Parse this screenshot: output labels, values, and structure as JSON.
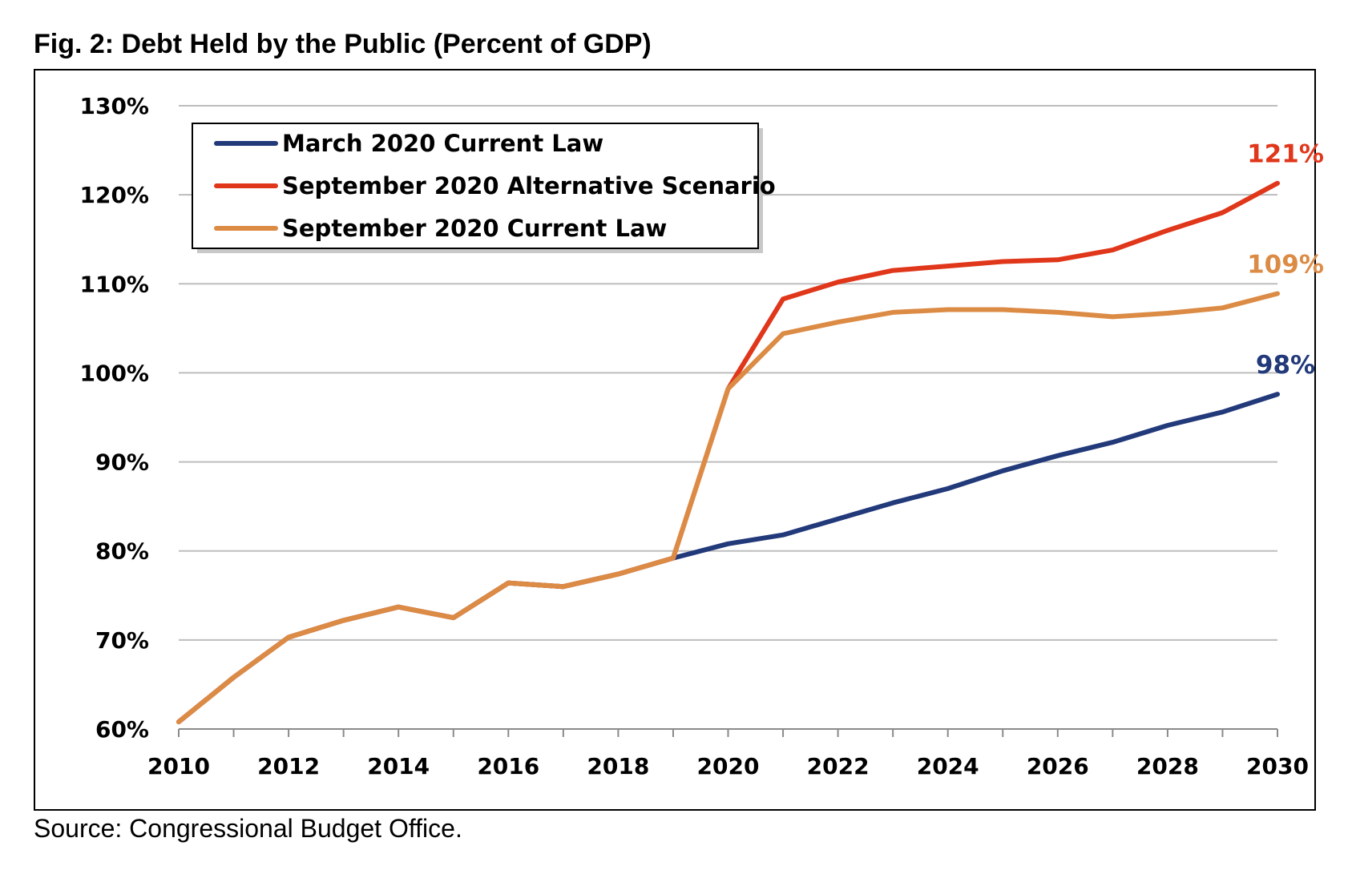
{
  "title": "Fig. 2: Debt Held by the Public (Percent of GDP)",
  "source": "Source: Congressional Budget Office.",
  "chart_data": {
    "type": "line",
    "title": "Fig. 2: Debt Held by the Public (Percent of GDP)",
    "xlabel": "",
    "ylabel": "",
    "x": [
      2010,
      2011,
      2012,
      2013,
      2014,
      2015,
      2016,
      2017,
      2018,
      2019,
      2020,
      2021,
      2022,
      2023,
      2024,
      2025,
      2026,
      2027,
      2028,
      2029,
      2030
    ],
    "xlim": [
      2010,
      2030
    ],
    "ylim": [
      60,
      130
    ],
    "x_tick_labels": [
      "2010",
      "2012",
      "2014",
      "2016",
      "2018",
      "2020",
      "2022",
      "2024",
      "2026",
      "2028",
      "2030"
    ],
    "y_tick_labels": [
      "60%",
      "70%",
      "80%",
      "90%",
      "100%",
      "110%",
      "120%",
      "130%"
    ],
    "grid": true,
    "legend_position": "top-left",
    "series": [
      {
        "name": "March 2020 Current Law",
        "color": "#22397a",
        "values": [
          60.8,
          65.8,
          70.3,
          72.2,
          73.7,
          72.5,
          76.4,
          76.0,
          77.4,
          79.2,
          80.8,
          81.8,
          83.6,
          85.4,
          87.0,
          89.0,
          90.7,
          92.2,
          94.1,
          95.6,
          97.6
        ],
        "end_label": "98%"
      },
      {
        "name": "September 2020 Alternative Scenario",
        "color": "#e0371b",
        "values": [
          60.8,
          65.8,
          70.3,
          72.2,
          73.7,
          72.5,
          76.4,
          76.0,
          77.4,
          79.2,
          98.2,
          108.3,
          110.2,
          111.5,
          112.0,
          112.5,
          112.7,
          113.8,
          116.0,
          118.0,
          121.3
        ],
        "end_label": "121%"
      },
      {
        "name": "September 2020 Current Law",
        "color": "#dc8b45",
        "values": [
          60.8,
          65.8,
          70.3,
          72.2,
          73.7,
          72.5,
          76.4,
          76.0,
          77.4,
          79.2,
          98.2,
          104.4,
          105.7,
          106.8,
          107.1,
          107.1,
          106.8,
          106.3,
          106.7,
          107.3,
          108.9
        ],
        "end_label": "109%"
      }
    ]
  }
}
